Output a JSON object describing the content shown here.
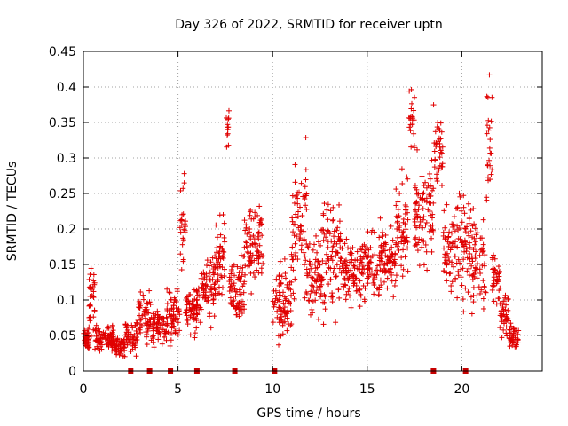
{
  "chart_data": {
    "type": "scatter",
    "title": "Day 326 of 2022, SRMTID for receiver uptn",
    "xlabel": "GPS time / hours",
    "ylabel": "SRMTID / TECUs",
    "xlim": [
      0,
      24.25
    ],
    "ylim": [
      0,
      0.45
    ],
    "xticks": [
      0,
      5,
      10,
      15,
      20
    ],
    "xtick_labels": [
      "0",
      "5",
      "10",
      "15",
      "20"
    ],
    "yticks": [
      0,
      0.05,
      0.1,
      0.15,
      0.2,
      0.25,
      0.3,
      0.35,
      0.4,
      0.45
    ],
    "ytick_labels": [
      "0",
      "0.05",
      "0.1",
      "0.15",
      "0.2",
      "0.25",
      "0.3",
      "0.35",
      "0.4",
      "0.45"
    ],
    "grid": true,
    "marker": "+",
    "color": "#e00000",
    "baseline_markers_x": [
      2.5,
      3.5,
      4.6,
      6.0,
      8.0,
      10.1,
      18.5,
      20.2
    ],
    "series_profile": [
      {
        "t0": 0.0,
        "t1": 0.3,
        "center": 0.045,
        "spread": 0.012,
        "n": 40
      },
      {
        "t0": 0.3,
        "t1": 0.6,
        "center": 0.1,
        "spread": 0.04,
        "n": 30
      },
      {
        "t0": 0.6,
        "t1": 1.6,
        "center": 0.045,
        "spread": 0.015,
        "n": 90
      },
      {
        "t0": 1.6,
        "t1": 2.2,
        "center": 0.035,
        "spread": 0.012,
        "n": 55
      },
      {
        "t0": 2.2,
        "t1": 2.9,
        "center": 0.05,
        "spread": 0.02,
        "n": 50
      },
      {
        "t0": 2.9,
        "t1": 3.5,
        "center": 0.08,
        "spread": 0.03,
        "n": 50
      },
      {
        "t0": 3.5,
        "t1": 4.4,
        "center": 0.065,
        "spread": 0.02,
        "n": 70
      },
      {
        "t0": 4.4,
        "t1": 5.1,
        "center": 0.075,
        "spread": 0.03,
        "n": 60
      },
      {
        "t0": 5.1,
        "t1": 5.4,
        "center": 0.2,
        "spread": 0.06,
        "n": 25
      },
      {
        "t0": 5.4,
        "t1": 6.2,
        "center": 0.09,
        "spread": 0.03,
        "n": 70
      },
      {
        "t0": 6.2,
        "t1": 7.0,
        "center": 0.12,
        "spread": 0.04,
        "n": 70
      },
      {
        "t0": 7.0,
        "t1": 7.5,
        "center": 0.16,
        "spread": 0.05,
        "n": 45
      },
      {
        "t0": 7.5,
        "t1": 7.7,
        "center": 0.33,
        "spread": 0.03,
        "n": 12
      },
      {
        "t0": 7.7,
        "t1": 8.5,
        "center": 0.11,
        "spread": 0.04,
        "n": 70
      },
      {
        "t0": 8.5,
        "t1": 9.5,
        "center": 0.17,
        "spread": 0.05,
        "n": 85
      },
      {
        "t0": 10.0,
        "t1": 11.0,
        "center": 0.1,
        "spread": 0.04,
        "n": 80
      },
      {
        "t0": 11.0,
        "t1": 11.8,
        "center": 0.2,
        "spread": 0.08,
        "n": 70
      },
      {
        "t0": 11.8,
        "t1": 12.6,
        "center": 0.13,
        "spread": 0.05,
        "n": 70
      },
      {
        "t0": 12.6,
        "t1": 13.6,
        "center": 0.16,
        "spread": 0.06,
        "n": 85
      },
      {
        "t0": 13.6,
        "t1": 15.0,
        "center": 0.14,
        "spread": 0.04,
        "n": 110
      },
      {
        "t0": 15.0,
        "t1": 16.5,
        "center": 0.15,
        "spread": 0.04,
        "n": 120
      },
      {
        "t0": 16.5,
        "t1": 17.2,
        "center": 0.2,
        "spread": 0.06,
        "n": 60
      },
      {
        "t0": 17.2,
        "t1": 17.5,
        "center": 0.36,
        "spread": 0.05,
        "n": 22
      },
      {
        "t0": 17.5,
        "t1": 18.5,
        "center": 0.22,
        "spread": 0.06,
        "n": 90
      },
      {
        "t0": 18.5,
        "t1": 19.0,
        "center": 0.3,
        "spread": 0.05,
        "n": 40
      },
      {
        "t0": 19.0,
        "t1": 20.5,
        "center": 0.17,
        "spread": 0.06,
        "n": 120
      },
      {
        "t0": 20.5,
        "t1": 21.3,
        "center": 0.15,
        "spread": 0.05,
        "n": 60
      },
      {
        "t0": 21.3,
        "t1": 21.6,
        "center": 0.3,
        "spread": 0.08,
        "n": 25
      },
      {
        "t0": 21.6,
        "t1": 22.0,
        "center": 0.13,
        "spread": 0.03,
        "n": 35
      },
      {
        "t0": 22.0,
        "t1": 22.5,
        "center": 0.08,
        "spread": 0.025,
        "n": 40
      },
      {
        "t0": 22.5,
        "t1": 23.0,
        "center": 0.05,
        "spread": 0.015,
        "n": 40
      }
    ]
  }
}
